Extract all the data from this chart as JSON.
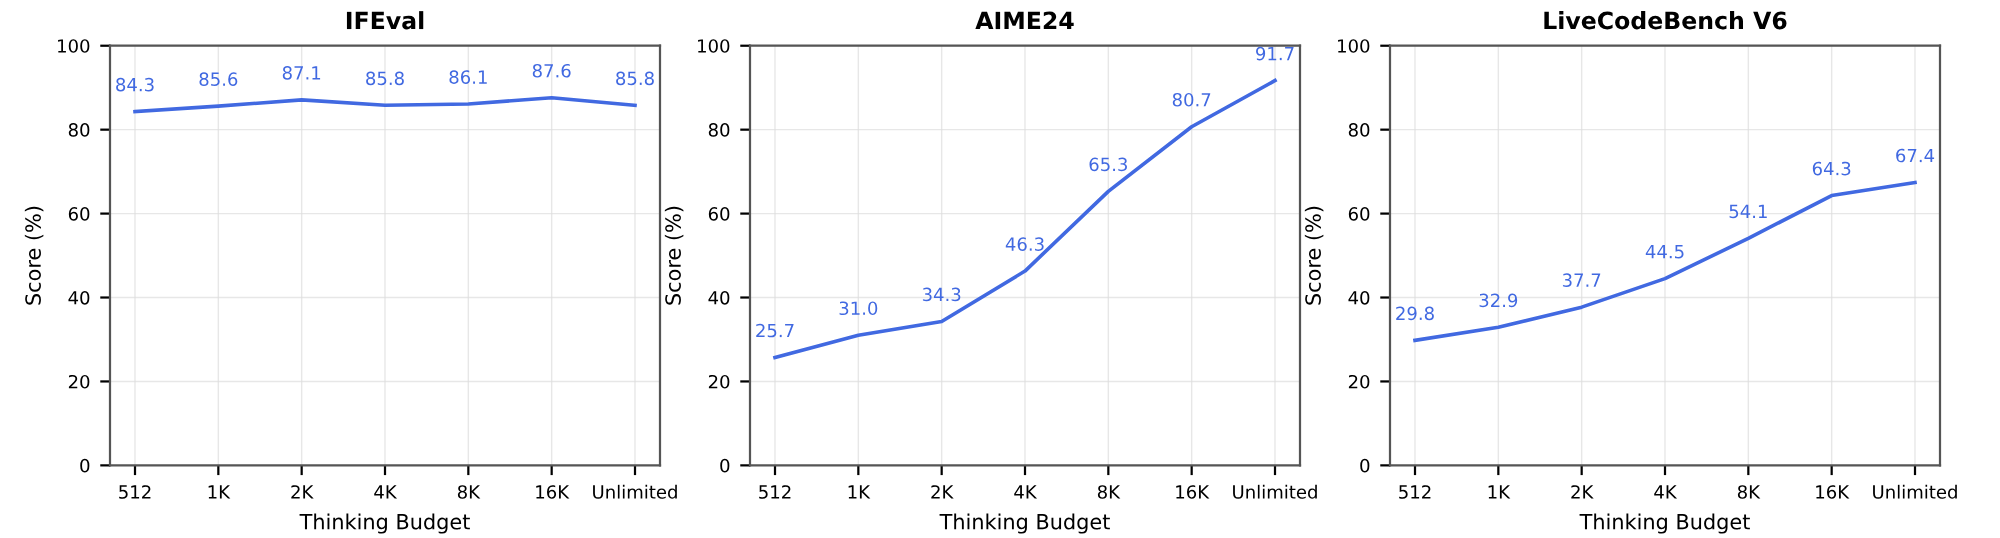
{
  "chart_data": [
    {
      "type": "line",
      "title": "IFEval",
      "xlabel": "Thinking Budget",
      "ylabel": "Score (%)",
      "categories": [
        "512",
        "1K",
        "2K",
        "4K",
        "8K",
        "16K",
        "Unlimited"
      ],
      "values": [
        84.3,
        85.6,
        87.1,
        85.8,
        86.1,
        87.6,
        85.8
      ],
      "color": "#4169e1",
      "ylim": [
        0,
        100
      ],
      "yticks": [
        0,
        20,
        40,
        60,
        80,
        100
      ],
      "grid": true,
      "data_labels": true
    },
    {
      "type": "line",
      "title": "AIME24",
      "xlabel": "Thinking Budget",
      "ylabel": "Score (%)",
      "categories": [
        "512",
        "1K",
        "2K",
        "4K",
        "8K",
        "16K",
        "Unlimited"
      ],
      "values": [
        25.7,
        31.0,
        34.3,
        46.3,
        65.3,
        80.7,
        91.7
      ],
      "value_labels": [
        "25.7",
        "31.0",
        "34.3",
        "46.3",
        "65.3",
        "80.7",
        "91.7"
      ],
      "color": "#4169e1",
      "ylim": [
        0,
        100
      ],
      "yticks": [
        0,
        20,
        40,
        60,
        80,
        100
      ],
      "grid": true
    },
    {
      "type": "line",
      "title": "LiveCodeBench V6",
      "xlabel": "Thinking Budget",
      "ylabel": "Score (%)",
      "categories": [
        "512",
        "1K",
        "2K",
        "4K",
        "8K",
        "16K",
        "Unlimited"
      ],
      "values": [
        29.8,
        32.9,
        37.7,
        44.5,
        54.1,
        64.3,
        67.4
      ],
      "color": "#4169e1",
      "ylim": [
        0,
        100
      ],
      "yticks": [
        0,
        20,
        40,
        60,
        80,
        100
      ],
      "grid": true,
      "data_labels": true
    }
  ]
}
